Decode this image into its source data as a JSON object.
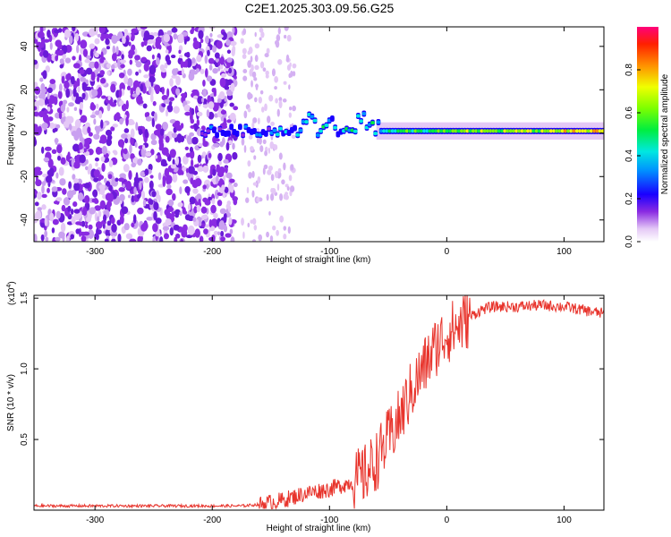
{
  "title": "C2E1.2025.303.09.56.G25",
  "chart_data": [
    {
      "type": "heatmap",
      "id": "spectrogram",
      "xlabel": "Height of straight line (km)",
      "ylabel": "Frequency (Hz)",
      "xlim": [
        -352,
        134
      ],
      "ylim": [
        -50,
        49
      ],
      "xticks": [
        -300,
        -200,
        -100,
        0,
        100
      ],
      "xtick_labels": [
        "-300",
        "-200",
        "-100",
        "0",
        "100"
      ],
      "yticks": [
        -40,
        -20,
        0,
        20,
        40
      ],
      "ytick_labels": [
        "-40",
        "-20",
        "0",
        "20",
        "40"
      ],
      "colorbar": {
        "label": "Normalized spectral amplitude",
        "range": [
          0,
          1
        ],
        "ticks": [
          0,
          0.2,
          0.4,
          0.6,
          0.8
        ],
        "tick_labels": [
          "0.0",
          "0.2",
          "0.4",
          "0.6",
          "0.8"
        ]
      },
      "features": [
        {
          "name": "noise-region",
          "x_range": [
            -352,
            -180
          ],
          "freq_range": [
            -50,
            49
          ],
          "amplitude": 0.1
        },
        {
          "name": "sparse-noise-band",
          "x_range": [
            -175,
            -130
          ],
          "freq_range": [
            -50,
            49
          ],
          "amplitude": 0.05
        },
        {
          "name": "signal-line",
          "x_range": [
            -210,
            134
          ],
          "freq_hz": 1,
          "amplitude_start": 0.25,
          "amplitude_end": 0.8
        }
      ]
    },
    {
      "type": "line",
      "id": "snr",
      "xlabel": "Height of straight line (km)",
      "ylabel": "SNR (10 * v/v)",
      "multiplier_label": "(x10",
      "multiplier_exp": "4",
      "multiplier_close": ")",
      "xlim": [
        -352,
        134
      ],
      "ylim": [
        0,
        1.52
      ],
      "xticks": [
        -300,
        -200,
        -100,
        0,
        100
      ],
      "xtick_labels": [
        "-300",
        "-200",
        "-100",
        "0",
        "100"
      ],
      "yticks": [
        0.5,
        1.0,
        1.5
      ],
      "ytick_labels": [
        "0.5",
        "1.0",
        "1.5"
      ],
      "series": [
        {
          "name": "SNR",
          "color": "#e8342c",
          "x": [
            -352,
            -300,
            -250,
            -200,
            -175,
            -160,
            -140,
            -120,
            -100,
            -80,
            -70,
            -60,
            -50,
            -40,
            -30,
            -20,
            -10,
            0,
            10,
            20,
            30,
            40,
            60,
            80,
            100,
            120,
            134
          ],
          "y": [
            0.03,
            0.03,
            0.03,
            0.03,
            0.03,
            0.04,
            0.07,
            0.12,
            0.15,
            0.2,
            0.25,
            0.35,
            0.5,
            0.65,
            0.85,
            1.0,
            1.15,
            1.25,
            1.3,
            1.37,
            1.42,
            1.44,
            1.44,
            1.45,
            1.44,
            1.41,
            1.39
          ]
        }
      ]
    }
  ]
}
